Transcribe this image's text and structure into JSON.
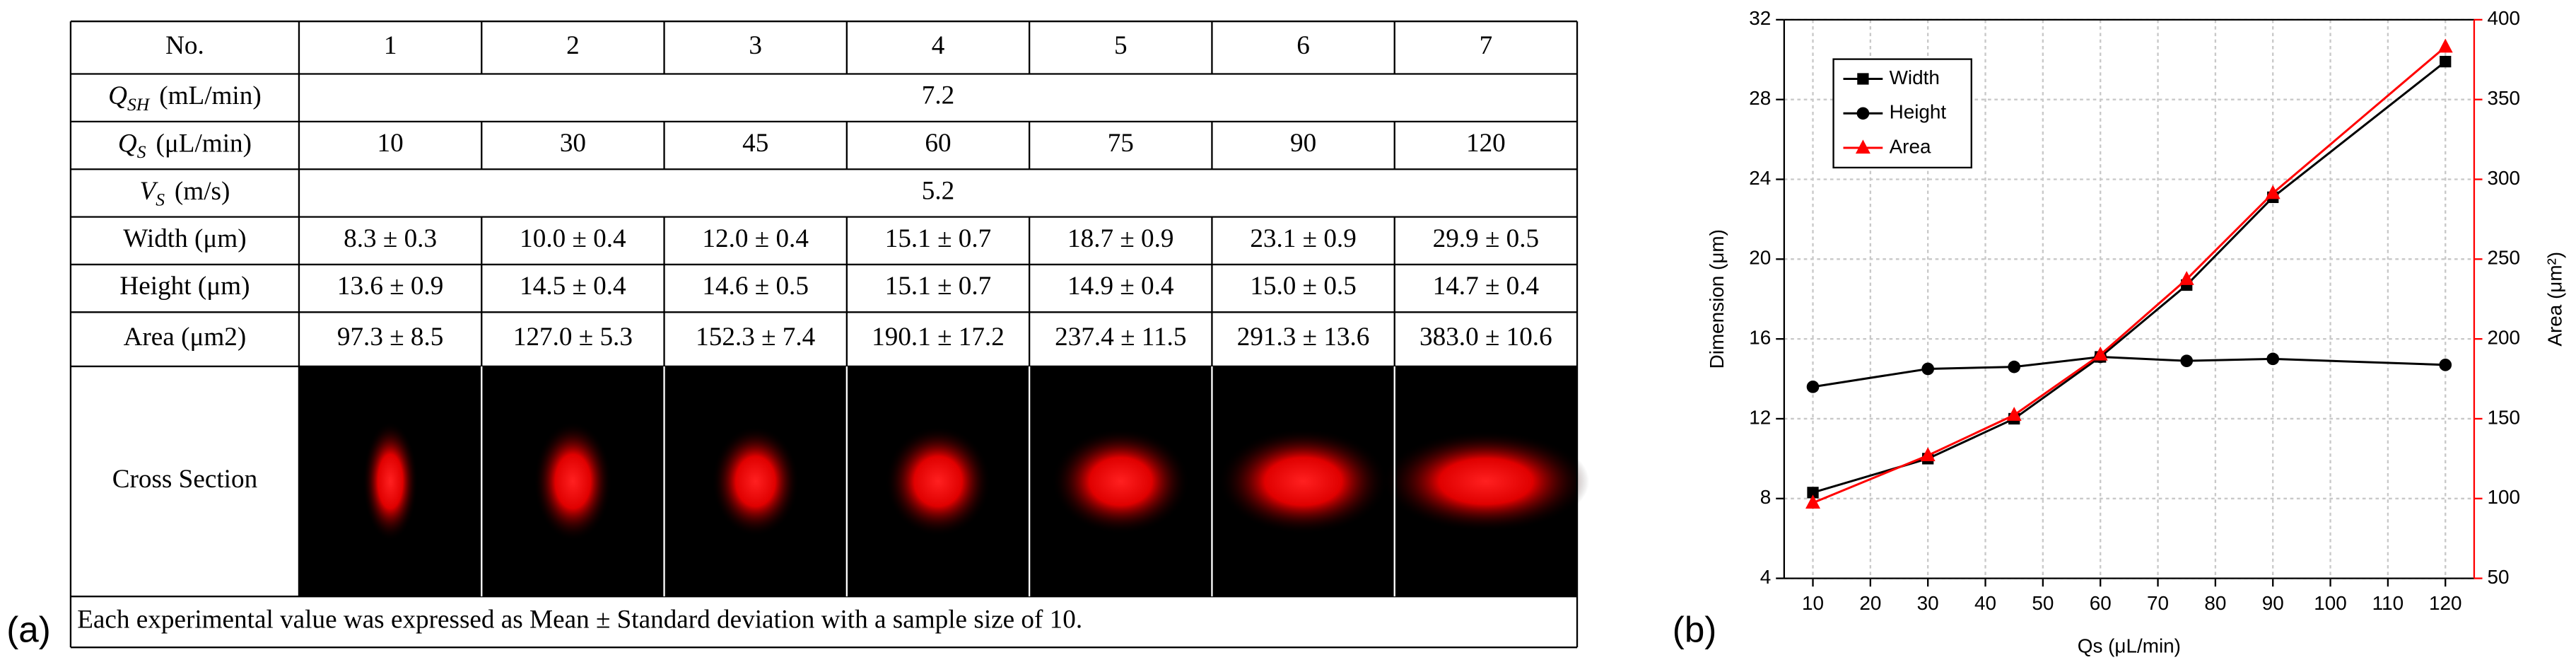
{
  "panel_labels": [
    "(a)",
    "(b)"
  ],
  "table": {
    "header": [
      "No.",
      "1",
      "2",
      "3",
      "4",
      "5",
      "6",
      "7"
    ],
    "q_sh": {
      "symbol": "Q",
      "subscript": "SH",
      "unit": "(mL/min)",
      "value": 7.2
    },
    "q_s": {
      "symbol": "Q",
      "subscript": "S",
      "unit": "(μL/min)",
      "values": [
        10,
        30,
        45,
        60,
        75,
        90,
        120
      ]
    },
    "v_s": {
      "symbol": "V",
      "subscript": "S",
      "unit": "(m/s)",
      "value": 5.2
    },
    "rows": [
      {
        "label": "Width (μm)",
        "values": [
          "8.3 ± 0.3",
          "10.0 ± 0.4",
          "12.0 ± 0.4",
          "15.1 ± 0.7",
          "18.7 ± 0.9",
          "23.1 ± 0.9",
          "29.9 ± 0.5"
        ]
      },
      {
        "label": "Height (μm)",
        "values": [
          "13.6 ± 0.9",
          "14.5 ± 0.4",
          "14.6 ± 0.5",
          "15.1 ± 0.7",
          "14.9 ± 0.4",
          "15.0 ± 0.5",
          "14.7 ± 0.4"
        ]
      },
      {
        "label": "Area (μm2)",
        "values": [
          "97.3 ± 8.5",
          "127.0 ± 5.3",
          "152.3 ± 7.4",
          "190.1 ± 17.2",
          "237.4 ± 11.5",
          "291.3 ± 13.6",
          "383.0 ± 10.6"
        ]
      }
    ],
    "cross_section_label": "Cross Section",
    "footnote": "Each experimental value was expressed as Mean ± Standard deviation with a sample size of 10."
  },
  "chart_data": {
    "type": "line",
    "x": [
      10,
      30,
      45,
      60,
      75,
      90,
      120
    ],
    "xlabel": "Qs (μL/min)",
    "ylabel": "Dimension  (μm)",
    "y2label": "Area  (μm²)",
    "xlim": [
      5,
      125
    ],
    "xticks": [
      10,
      20,
      30,
      40,
      50,
      60,
      70,
      80,
      90,
      100,
      110,
      120
    ],
    "ylim": [
      4,
      32
    ],
    "yticks": [
      4,
      8,
      12,
      16,
      20,
      24,
      28,
      32
    ],
    "y2lim": [
      50,
      400
    ],
    "y2ticks": [
      50,
      100,
      150,
      200,
      250,
      300,
      350,
      400
    ],
    "y2color": "#ff0000",
    "grid": true,
    "legend": "upper left",
    "series": [
      {
        "name": "Width",
        "color": "#000000",
        "marker": "square",
        "values": [
          8.3,
          10.0,
          12.0,
          15.1,
          18.7,
          23.1,
          29.9
        ]
      },
      {
        "name": "Height",
        "color": "#000000",
        "marker": "circle",
        "values": [
          13.6,
          14.5,
          14.6,
          15.1,
          14.9,
          15.0,
          14.7
        ]
      },
      {
        "name": "Area",
        "color": "#ff0000",
        "marker": "triangle",
        "axis": "y2",
        "values": [
          97.3,
          127.0,
          152.3,
          190.1,
          237.4,
          291.3,
          383.0
        ]
      }
    ]
  }
}
